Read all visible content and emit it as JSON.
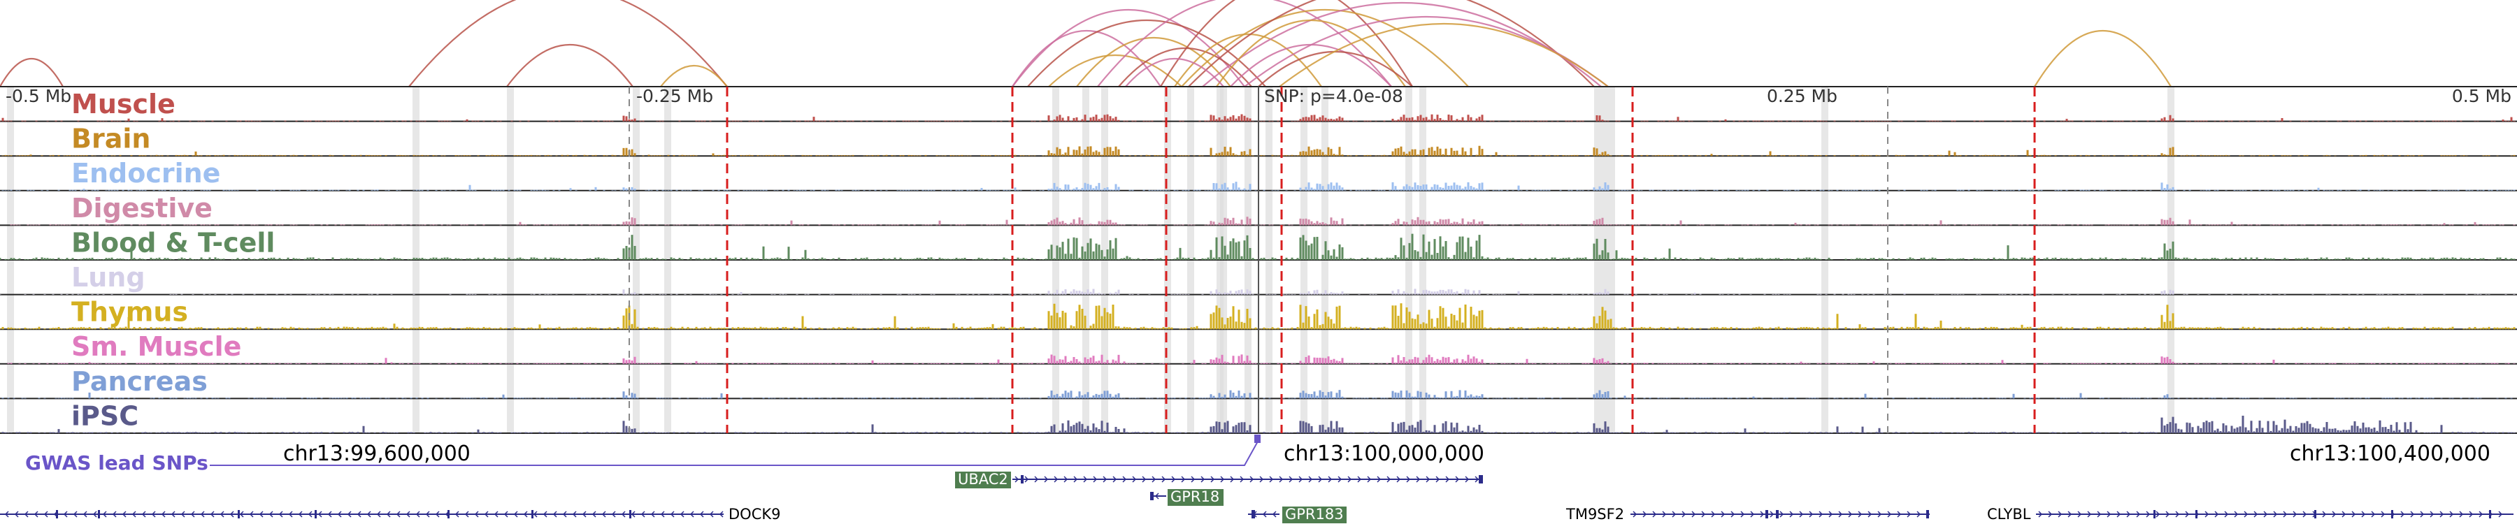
{
  "colors": {
    "arc_red": "#b8544a",
    "arc_pink": "#cc6f9f",
    "arc_orange": "#d09a3a",
    "boundary": "#d81e1e",
    "highlight": "#dddddd",
    "gene_box": "#4f7e4f",
    "gene_line": "#2b2b8a",
    "gwas": "#6a55c8",
    "axis": "#222222"
  },
  "scale": {
    "labels": [
      "-0.5 Mb",
      "-0.25 Mb",
      "0.25 Mb",
      "0.5 Mb"
    ]
  },
  "snp": {
    "label": "SNP: p=4.0e-08"
  },
  "tracks": [
    {
      "name": "Muscle",
      "color": "#c0504d",
      "intensity": 0.25
    },
    {
      "name": "Brain",
      "color": "#c48a24",
      "intensity": 0.35
    },
    {
      "name": "Endocrine",
      "color": "#9dbff0",
      "intensity": 0.3
    },
    {
      "name": "Digestive",
      "color": "#d08aa8",
      "intensity": 0.3
    },
    {
      "name": "Blood & T-cell",
      "color": "#5f8b5f",
      "intensity": 0.9
    },
    {
      "name": "Lung",
      "color": "#d4cfe8",
      "intensity": 0.2
    },
    {
      "name": "Thymus",
      "color": "#d4b021",
      "intensity": 0.9
    },
    {
      "name": "Sm. Muscle",
      "color": "#e07bbf",
      "intensity": 0.35
    },
    {
      "name": "Pancreas",
      "color": "#7f9fd6",
      "intensity": 0.3
    },
    {
      "name": "iPSC",
      "color": "#5a5a8a",
      "intensity": 0.45
    }
  ],
  "gwas": {
    "label": "GWAS lead SNPs"
  },
  "coordinates": {
    "labels": [
      "chr13:99,600,000",
      "chr13:100,000,000",
      "chr13:100,400,000"
    ]
  },
  "genes": [
    {
      "name": "UBAC2",
      "boxed": true
    },
    {
      "name": "GPR18",
      "boxed": true
    },
    {
      "name": "DOCK9",
      "boxed": false
    },
    {
      "name": "GPR183",
      "boxed": true
    },
    {
      "name": "TM9SF2",
      "boxed": false
    },
    {
      "name": "CLYBL",
      "boxed": false
    }
  ]
}
